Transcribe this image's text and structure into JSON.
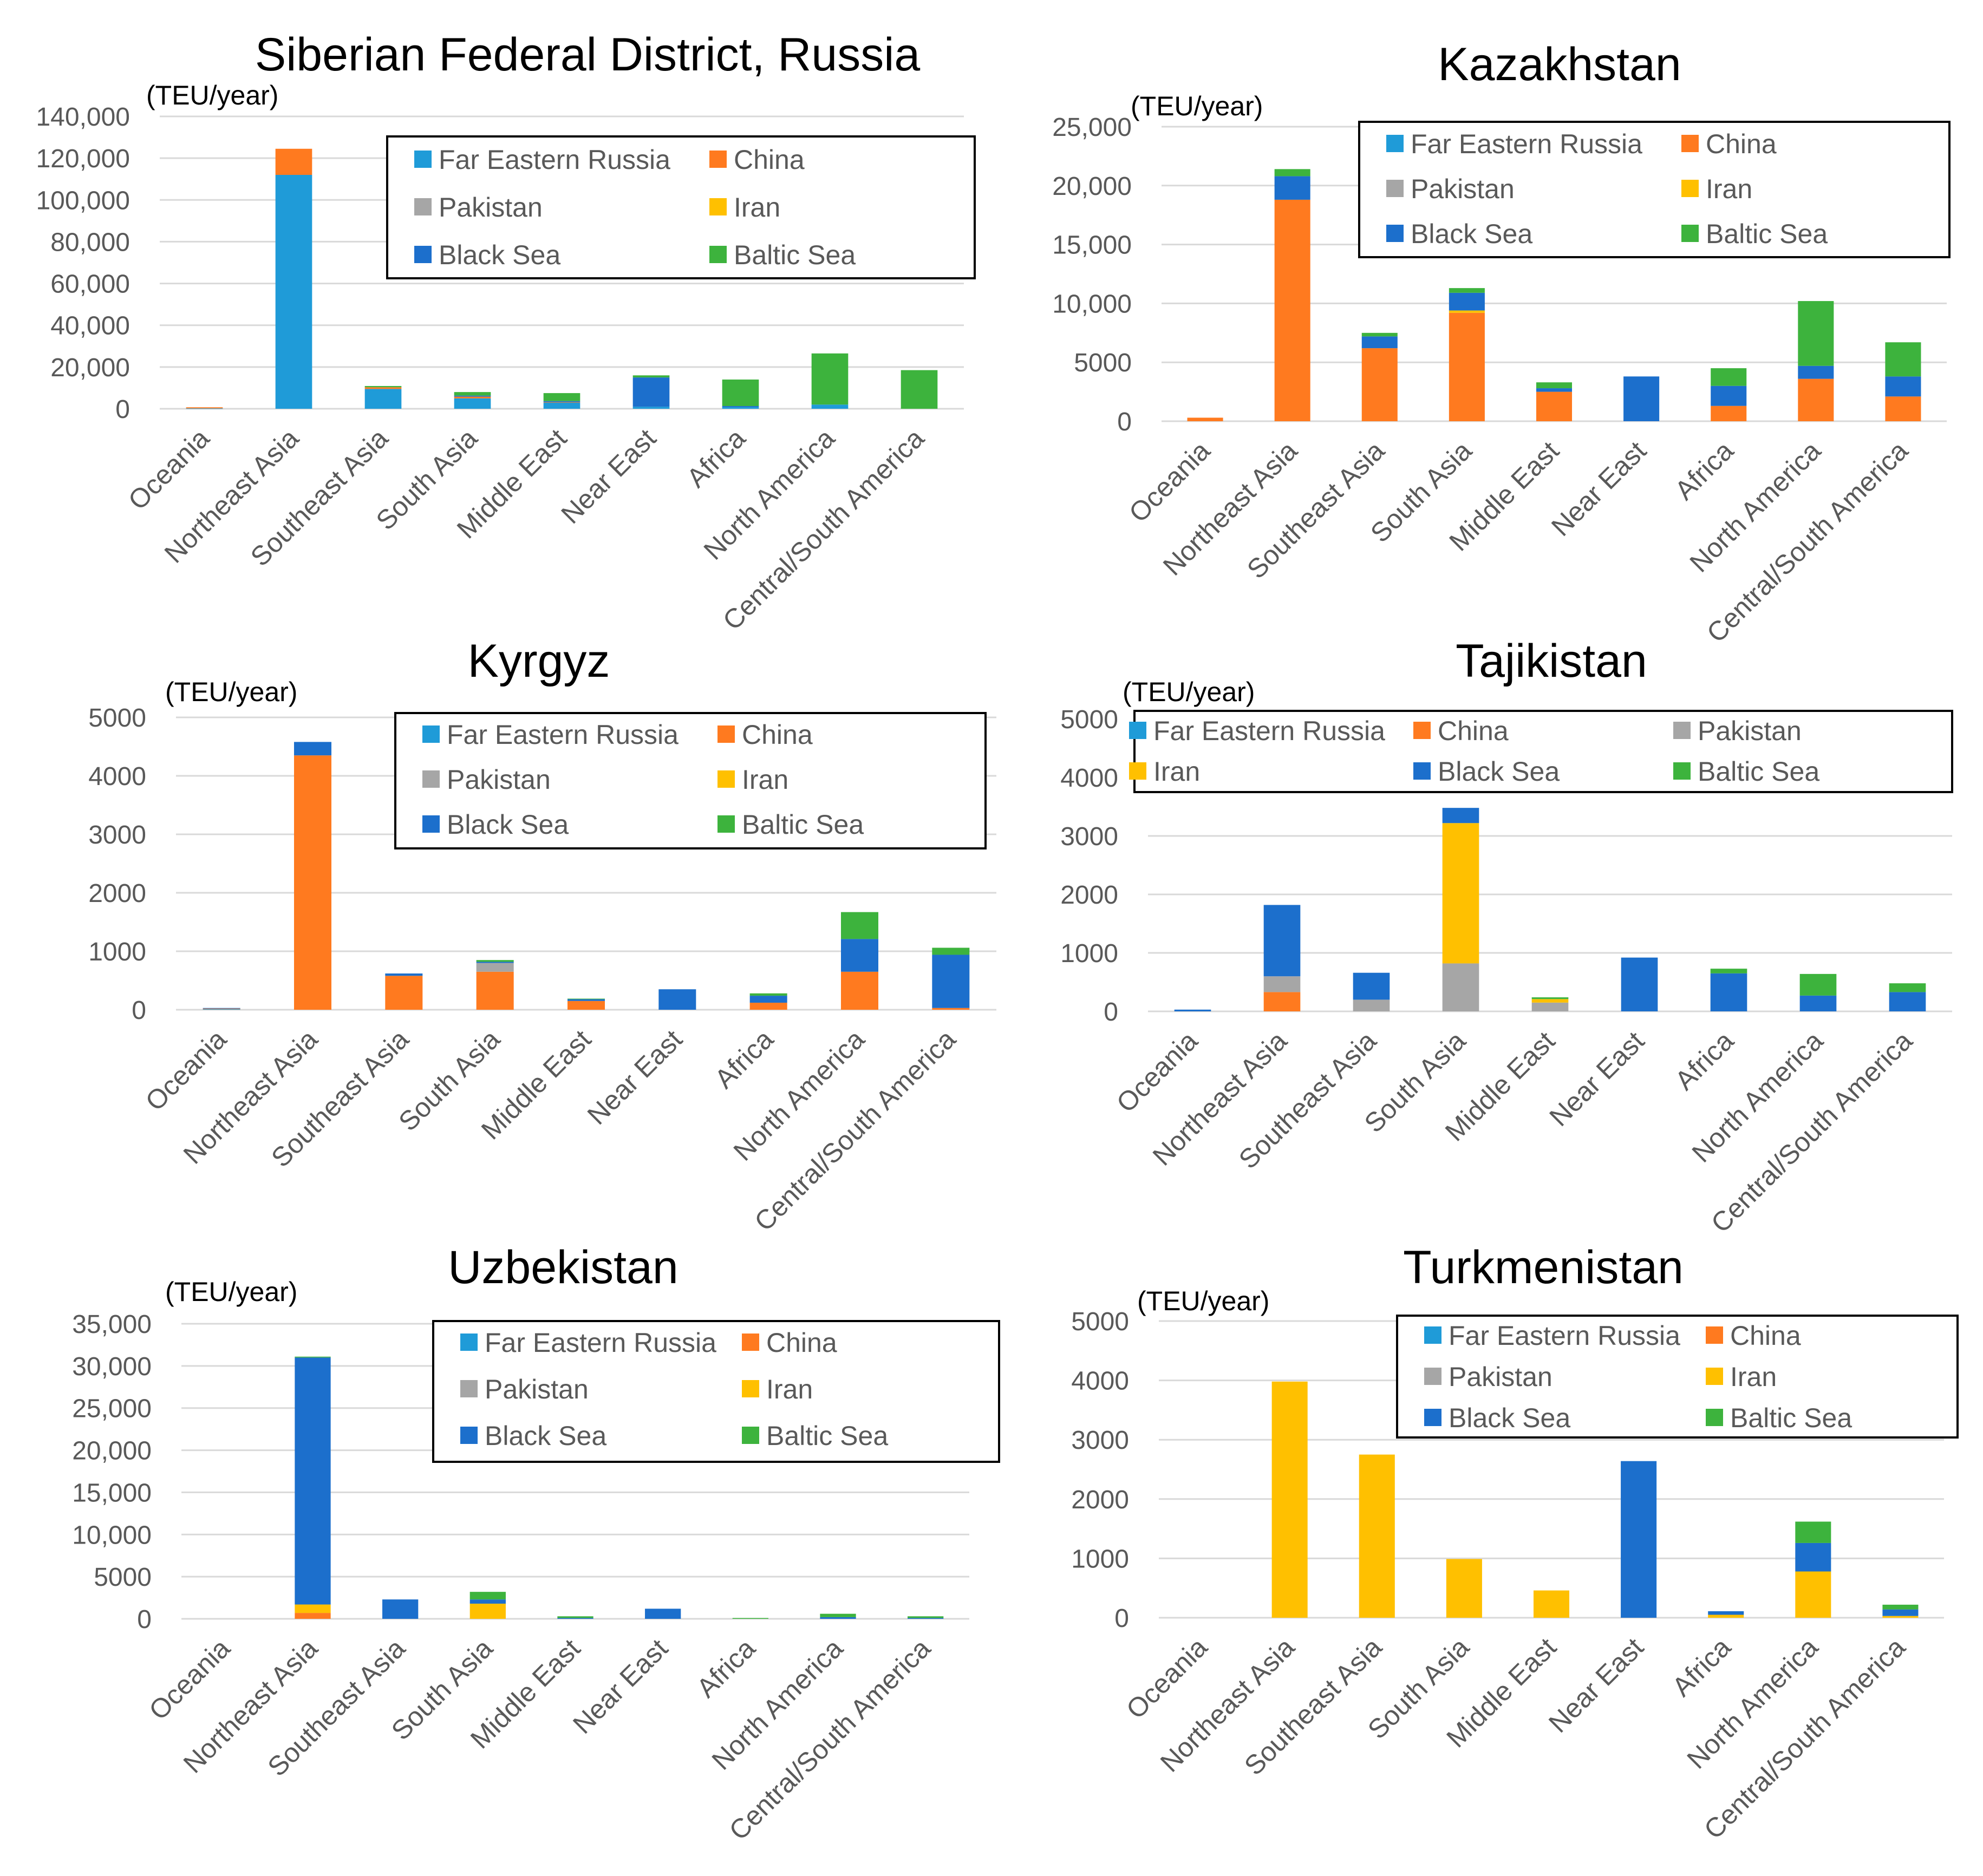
{
  "colors": {
    "Far Eastern Russia": "#1f9bd8",
    "China": "#ff7a1f",
    "Pakistan": "#a6a6a6",
    "Iran": "#ffc000",
    "Black Sea": "#1c6fcc",
    "Baltic Sea": "#3db33d",
    "grid": "#d9d9d9",
    "axis_text": "#595959",
    "title_text": "#000000"
  },
  "chart_data": [
    {
      "type": "bar",
      "stacked": true,
      "title": "Siberian Federal District, Russia",
      "ylabel": "(TEU/year)",
      "ylim": [
        0,
        140000
      ],
      "yticks": [
        "0",
        "20,000",
        "40,000",
        "60,000",
        "80,000",
        "100,000",
        "120,000",
        "140,000"
      ],
      "ytick_values": [
        0,
        20000,
        40000,
        60000,
        80000,
        100000,
        120000,
        140000
      ],
      "legend_columns": 2,
      "legend_position": "top-right",
      "categories": [
        "Oceania",
        "Northeast Asia",
        "Southeast Asia",
        "South Asia",
        "Middle East",
        "Near East",
        "Africa",
        "North America",
        "Central/South America"
      ],
      "series": [
        {
          "name": "Far Eastern Russia",
          "values": [
            200,
            112000,
            9500,
            5000,
            3000,
            1000,
            800,
            2000,
            0
          ]
        },
        {
          "name": "China",
          "values": [
            500,
            12500,
            800,
            800,
            200,
            0,
            0,
            0,
            0
          ]
        },
        {
          "name": "Pakistan",
          "values": [
            0,
            0,
            0,
            0,
            0,
            0,
            0,
            0,
            0
          ]
        },
        {
          "name": "Iran",
          "values": [
            0,
            0,
            0,
            0,
            0,
            0,
            0,
            0,
            0
          ]
        },
        {
          "name": "Black Sea",
          "values": [
            0,
            0,
            0,
            500,
            500,
            14000,
            500,
            0,
            0
          ]
        },
        {
          "name": "Baltic Sea",
          "values": [
            0,
            0,
            600,
            1700,
            3800,
            1000,
            12700,
            24500,
            18500
          ]
        }
      ]
    },
    {
      "type": "bar",
      "stacked": true,
      "title": "Kazakhstan",
      "ylabel": "(TEU/year)",
      "ylim": [
        0,
        25000
      ],
      "yticks": [
        "0",
        "5000",
        "10,000",
        "15,000",
        "20,000",
        "25,000"
      ],
      "ytick_values": [
        0,
        5000,
        10000,
        15000,
        20000,
        25000
      ],
      "legend_columns": 2,
      "legend_position": "top-right",
      "categories": [
        "Oceania",
        "Northeast Asia",
        "Southeast Asia",
        "South Asia",
        "Middle East",
        "Near East",
        "Africa",
        "North America",
        "Central/South America"
      ],
      "series": [
        {
          "name": "Far Eastern Russia",
          "values": [
            0,
            0,
            0,
            0,
            0,
            0,
            0,
            0,
            0
          ]
        },
        {
          "name": "China",
          "values": [
            300,
            18800,
            6200,
            9200,
            2500,
            0,
            1300,
            3600,
            2100
          ]
        },
        {
          "name": "Pakistan",
          "values": [
            0,
            0,
            0,
            0,
            0,
            0,
            0,
            0,
            0
          ]
        },
        {
          "name": "Iran",
          "values": [
            0,
            0,
            0,
            200,
            0,
            0,
            0,
            0,
            0
          ]
        },
        {
          "name": "Black Sea",
          "values": [
            0,
            2000,
            1000,
            1500,
            300,
            3800,
            1700,
            1100,
            1700
          ]
        },
        {
          "name": "Baltic Sea",
          "values": [
            0,
            600,
            300,
            400,
            500,
            0,
            1500,
            5500,
            2900
          ]
        }
      ]
    },
    {
      "type": "bar",
      "stacked": true,
      "title": "Kyrgyz",
      "ylabel": "(TEU/year)",
      "ylim": [
        0,
        5000
      ],
      "yticks": [
        "0",
        "1000",
        "2000",
        "3000",
        "4000",
        "5000"
      ],
      "ytick_values": [
        0,
        1000,
        2000,
        3000,
        4000,
        5000
      ],
      "legend_columns": 2,
      "legend_position": "top-right",
      "categories": [
        "Oceania",
        "Northeast Asia",
        "Southeast Asia",
        "South Asia",
        "Middle East",
        "Near East",
        "Africa",
        "North America",
        "Central/South America"
      ],
      "series": [
        {
          "name": "Far Eastern Russia",
          "values": [
            10,
            0,
            0,
            0,
            0,
            0,
            0,
            0,
            0
          ]
        },
        {
          "name": "China",
          "values": [
            10,
            4350,
            580,
            650,
            150,
            0,
            120,
            650,
            30
          ]
        },
        {
          "name": "Pakistan",
          "values": [
            0,
            0,
            0,
            150,
            0,
            0,
            0,
            0,
            0
          ]
        },
        {
          "name": "Iran",
          "values": [
            0,
            0,
            0,
            0,
            0,
            0,
            0,
            0,
            0
          ]
        },
        {
          "name": "Black Sea",
          "values": [
            10,
            230,
            40,
            20,
            30,
            350,
            120,
            560,
            910
          ]
        },
        {
          "name": "Baltic Sea",
          "values": [
            0,
            0,
            0,
            30,
            10,
            0,
            40,
            460,
            120
          ]
        }
      ]
    },
    {
      "type": "bar",
      "stacked": true,
      "title": "Tajikistan",
      "ylabel": "(TEU/year)",
      "ylim": [
        0,
        5000
      ],
      "yticks": [
        "0",
        "1000",
        "2000",
        "3000",
        "4000",
        "5000"
      ],
      "ytick_values": [
        0,
        1000,
        2000,
        3000,
        4000,
        5000
      ],
      "legend_columns": 3,
      "legend_position": "top",
      "categories": [
        "Oceania",
        "Northeast Asia",
        "Southeast Asia",
        "South Asia",
        "Middle East",
        "Near East",
        "Africa",
        "North America",
        "Central/South America"
      ],
      "series": [
        {
          "name": "Far Eastern Russia",
          "values": [
            0,
            0,
            0,
            0,
            0,
            0,
            0,
            0,
            0
          ]
        },
        {
          "name": "China",
          "values": [
            0,
            330,
            0,
            0,
            0,
            0,
            0,
            0,
            0
          ]
        },
        {
          "name": "Pakistan",
          "values": [
            0,
            270,
            200,
            820,
            150,
            0,
            0,
            0,
            0
          ]
        },
        {
          "name": "Iran",
          "values": [
            0,
            0,
            0,
            2400,
            60,
            0,
            0,
            0,
            0
          ]
        },
        {
          "name": "Black Sea",
          "values": [
            30,
            1220,
            460,
            260,
            0,
            920,
            650,
            270,
            330
          ]
        },
        {
          "name": "Baltic Sea",
          "values": [
            0,
            0,
            0,
            0,
            30,
            0,
            80,
            370,
            150
          ]
        }
      ]
    },
    {
      "type": "bar",
      "stacked": true,
      "title": "Uzbekistan",
      "ylabel": "(TEU/year)",
      "ylim": [
        0,
        35000
      ],
      "yticks": [
        "0",
        "5000",
        "10,000",
        "15,000",
        "20,000",
        "25,000",
        "30,000",
        "35,000"
      ],
      "ytick_values": [
        0,
        5000,
        10000,
        15000,
        20000,
        25000,
        30000,
        35000
      ],
      "legend_columns": 2,
      "legend_position": "top-right",
      "categories": [
        "Oceania",
        "Northeast Asia",
        "Southeast Asia",
        "South Asia",
        "Middle East",
        "Near East",
        "Africa",
        "North America",
        "Central/South America"
      ],
      "series": [
        {
          "name": "Far Eastern Russia",
          "values": [
            0,
            0,
            0,
            0,
            0,
            0,
            0,
            0,
            0
          ]
        },
        {
          "name": "China",
          "values": [
            0,
            700,
            0,
            0,
            0,
            0,
            0,
            0,
            0
          ]
        },
        {
          "name": "Pakistan",
          "values": [
            0,
            0,
            0,
            0,
            0,
            0,
            0,
            0,
            0
          ]
        },
        {
          "name": "Iran",
          "values": [
            0,
            1000,
            0,
            1800,
            0,
            0,
            0,
            0,
            0
          ]
        },
        {
          "name": "Black Sea",
          "values": [
            0,
            29300,
            2300,
            500,
            100,
            1200,
            0,
            200,
            100
          ]
        },
        {
          "name": "Baltic Sea",
          "values": [
            0,
            100,
            0,
            900,
            200,
            0,
            100,
            400,
            200
          ]
        }
      ]
    },
    {
      "type": "bar",
      "stacked": true,
      "title": "Turkmenistan",
      "ylabel": "(TEU/year)",
      "ylim": [
        0,
        5000
      ],
      "yticks": [
        "0",
        "1000",
        "2000",
        "3000",
        "4000",
        "5000"
      ],
      "ytick_values": [
        0,
        1000,
        2000,
        3000,
        4000,
        5000
      ],
      "legend_columns": 2,
      "legend_position": "top-right",
      "categories": [
        "Oceania",
        "Northeast Asia",
        "Southeast Asia",
        "South Asia",
        "Middle East",
        "Near East",
        "Africa",
        "North America",
        "Central/South America"
      ],
      "series": [
        {
          "name": "Far Eastern Russia",
          "values": [
            0,
            0,
            0,
            0,
            0,
            0,
            0,
            0,
            0
          ]
        },
        {
          "name": "China",
          "values": [
            0,
            0,
            0,
            0,
            0,
            0,
            0,
            0,
            0
          ]
        },
        {
          "name": "Pakistan",
          "values": [
            0,
            0,
            0,
            0,
            0,
            0,
            0,
            0,
            0
          ]
        },
        {
          "name": "Iran",
          "values": [
            0,
            3980,
            2750,
            990,
            460,
            0,
            50,
            780,
            30
          ]
        },
        {
          "name": "Black Sea",
          "values": [
            0,
            0,
            0,
            0,
            0,
            2640,
            60,
            480,
            110
          ]
        },
        {
          "name": "Baltic Sea",
          "values": [
            0,
            0,
            0,
            0,
            0,
            0,
            0,
            360,
            80
          ]
        }
      ]
    }
  ]
}
